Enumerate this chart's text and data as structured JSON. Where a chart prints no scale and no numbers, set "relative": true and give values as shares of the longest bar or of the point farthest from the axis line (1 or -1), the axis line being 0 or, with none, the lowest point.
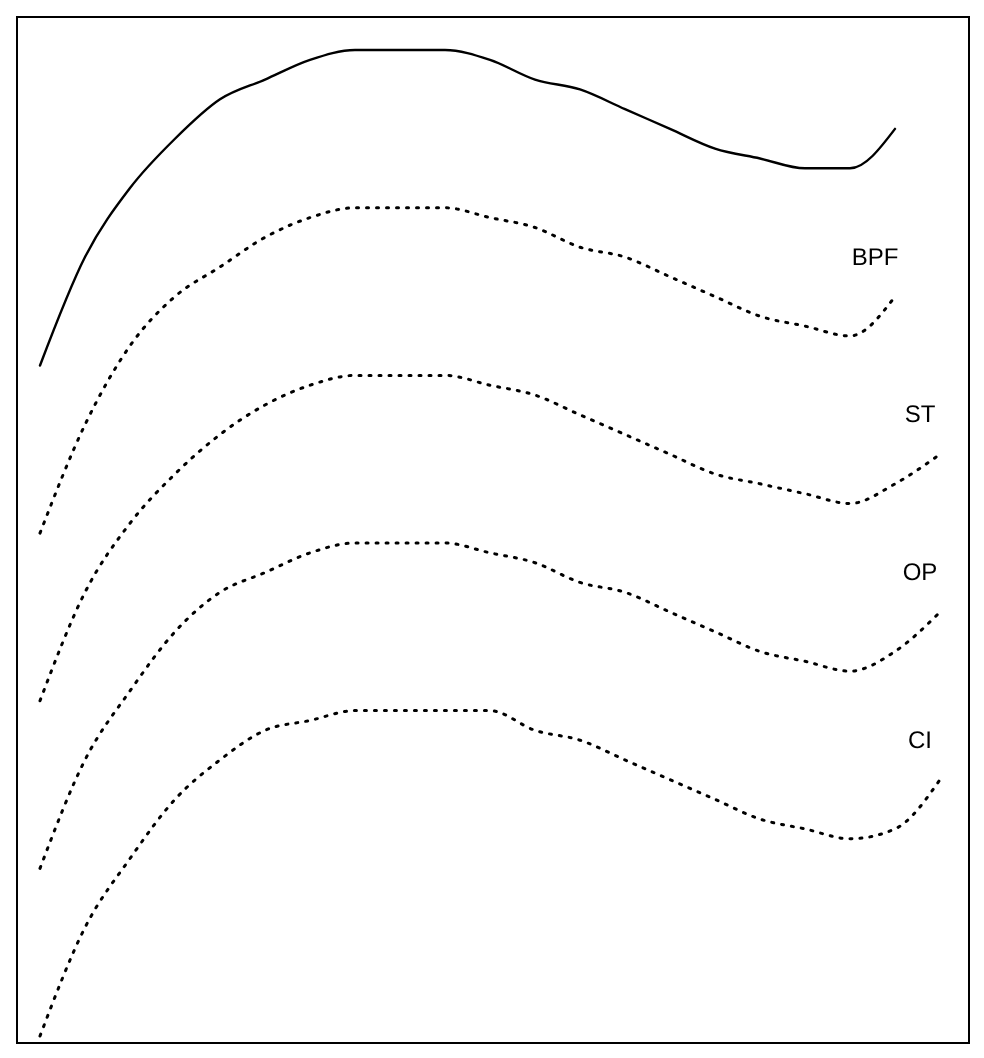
{
  "chart_data": {
    "type": "line",
    "relative": true,
    "categories": [
      null,
      null,
      null,
      null,
      null,
      null,
      null,
      null,
      null,
      null,
      null,
      null,
      null,
      null,
      null,
      null,
      null,
      null,
      null,
      null,
      null
    ],
    "series": [
      {
        "color": "#000000",
        "line_style": "solid",
        "values": [
          0.68,
          0.79,
          0.86,
          0.91,
          0.95,
          0.97,
          0.99,
          1.0,
          1.0,
          1.0,
          0.99,
          0.97,
          0.96,
          0.94,
          0.92,
          0.9,
          0.89,
          0.88,
          0.88,
          0.92,
          null
        ]
      },
      {
        "name": "BPF",
        "color": "#000000",
        "line_style": "dotted",
        "values": [
          0.51,
          0.62,
          0.7,
          0.75,
          0.78,
          0.81,
          0.83,
          0.84,
          0.84,
          0.84,
          0.83,
          0.82,
          0.8,
          0.79,
          0.77,
          0.75,
          0.73,
          0.72,
          0.71,
          0.75,
          null
        ]
      },
      {
        "name": "ST",
        "color": "#000000",
        "line_style": "dotted",
        "values": [
          0.34,
          0.45,
          0.52,
          0.57,
          0.61,
          0.64,
          0.66,
          0.67,
          0.67,
          0.67,
          0.66,
          0.65,
          0.63,
          0.61,
          0.59,
          0.57,
          0.56,
          0.55,
          0.54,
          0.56,
          0.59
        ]
      },
      {
        "name": "OP",
        "color": "#000000",
        "line_style": "dotted",
        "values": [
          0.17,
          0.28,
          0.35,
          0.41,
          0.45,
          0.47,
          0.49,
          0.5,
          0.5,
          0.5,
          0.49,
          0.48,
          0.46,
          0.45,
          0.43,
          0.41,
          0.39,
          0.38,
          0.37,
          0.39,
          0.43
        ]
      },
      {
        "name": "CI",
        "color": "#000000",
        "line_style": "dotted",
        "values": [
          0.0,
          0.11,
          0.18,
          0.24,
          0.28,
          0.31,
          0.32,
          0.33,
          0.33,
          0.33,
          0.33,
          0.31,
          0.3,
          0.28,
          0.26,
          0.24,
          0.22,
          0.21,
          0.2,
          0.21,
          0.26
        ]
      }
    ]
  }
}
